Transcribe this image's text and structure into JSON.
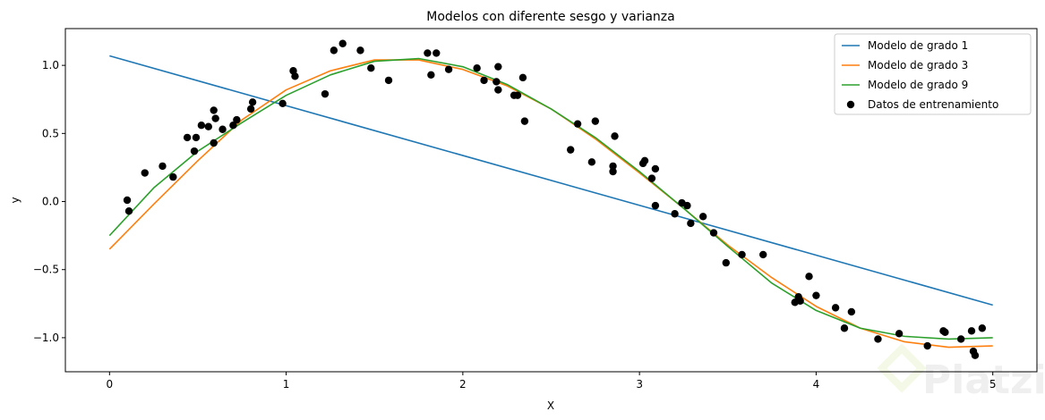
{
  "chart_data": {
    "type": "line",
    "title": "Modelos con diferente sesgo y varianza",
    "xlabel": "X",
    "ylabel": "y",
    "xlim": [
      -0.25,
      5.25
    ],
    "ylim": [
      -1.25,
      1.27
    ],
    "xticks": [
      0,
      1,
      2,
      3,
      4,
      5
    ],
    "xtick_labels": [
      "0",
      "1",
      "2",
      "3",
      "4",
      "5"
    ],
    "yticks": [
      1.0,
      0.5,
      0.0,
      -0.5,
      -1.0
    ],
    "ytick_labels": [
      "1.0",
      "0.5",
      "0.0",
      "−0.5",
      "−1.0"
    ],
    "grid": false,
    "legend_position": "top-right",
    "series": [
      {
        "name": "Modelo de grado 1",
        "type": "line",
        "color": "#1f77b4",
        "x": [
          0,
          5
        ],
        "y": [
          1.07,
          -0.76
        ]
      },
      {
        "name": "Modelo de grado 3",
        "type": "line",
        "color": "#ff7f0e",
        "x": [
          0,
          0.25,
          0.5,
          0.75,
          1,
          1.25,
          1.5,
          1.75,
          2,
          2.25,
          2.5,
          2.75,
          3,
          3.25,
          3.5,
          3.75,
          4,
          4.25,
          4.5,
          4.75,
          5
        ],
        "y": [
          -0.35,
          -0.02,
          0.3,
          0.6,
          0.82,
          0.96,
          1.04,
          1.04,
          0.97,
          0.85,
          0.68,
          0.46,
          0.21,
          -0.05,
          -0.32,
          -0.56,
          -0.77,
          -0.93,
          -1.03,
          -1.07,
          -1.06
        ]
      },
      {
        "name": "Modelo de grado 9",
        "type": "line",
        "color": "#2ca02c",
        "x": [
          0,
          0.25,
          0.5,
          0.75,
          1,
          1.25,
          1.5,
          1.75,
          2,
          2.25,
          2.5,
          2.75,
          3,
          3.25,
          3.5,
          3.75,
          4,
          4.25,
          4.5,
          4.75,
          5
        ],
        "y": [
          -0.25,
          0.1,
          0.37,
          0.58,
          0.78,
          0.93,
          1.03,
          1.05,
          0.99,
          0.86,
          0.68,
          0.47,
          0.22,
          -0.05,
          -0.33,
          -0.6,
          -0.8,
          -0.93,
          -0.99,
          -1.01,
          -1.0
        ]
      },
      {
        "name": "Datos de entrenamiento",
        "type": "scatter",
        "color": "#000000",
        "x": [
          0.1,
          0.11,
          0.2,
          0.3,
          0.36,
          0.44,
          0.48,
          0.49,
          0.52,
          0.56,
          0.59,
          0.59,
          0.6,
          0.64,
          0.7,
          0.72,
          0.8,
          0.81,
          0.98,
          1.04,
          1.05,
          1.22,
          1.27,
          1.32,
          1.42,
          1.48,
          1.58,
          1.8,
          1.82,
          1.85,
          1.92,
          2.08,
          2.12,
          2.19,
          2.2,
          2.2,
          2.29,
          2.31,
          2.34,
          2.35,
          2.61,
          2.65,
          2.73,
          2.75,
          2.85,
          2.85,
          2.86,
          3.02,
          3.03,
          3.07,
          3.09,
          3.09,
          3.2,
          3.24,
          3.27,
          3.29,
          3.36,
          3.42,
          3.49,
          3.58,
          3.7,
          3.88,
          3.9,
          3.91,
          3.96,
          4.0,
          4.11,
          4.16,
          4.2,
          4.35,
          4.47,
          4.63,
          4.72,
          4.73,
          4.82,
          4.88,
          4.89,
          4.9,
          4.94
        ],
        "y": [
          0.01,
          -0.07,
          0.21,
          0.26,
          0.18,
          0.47,
          0.37,
          0.47,
          0.56,
          0.55,
          0.43,
          0.67,
          0.61,
          0.53,
          0.56,
          0.6,
          0.68,
          0.73,
          0.72,
          0.96,
          0.92,
          0.79,
          1.11,
          1.16,
          1.11,
          0.98,
          0.89,
          1.09,
          0.93,
          1.09,
          0.97,
          0.98,
          0.89,
          0.88,
          0.99,
          0.82,
          0.78,
          0.78,
          0.91,
          0.59,
          0.38,
          0.57,
          0.29,
          0.59,
          0.26,
          0.22,
          0.48,
          0.28,
          0.3,
          0.17,
          0.24,
          -0.03,
          -0.09,
          -0.01,
          -0.03,
          -0.16,
          -0.11,
          -0.23,
          -0.45,
          -0.39,
          -0.39,
          -0.74,
          -0.7,
          -0.73,
          -0.55,
          -0.69,
          -0.78,
          -0.93,
          -0.81,
          -1.01,
          -0.97,
          -1.06,
          -0.95,
          -0.96,
          -1.01,
          -0.95,
          -1.1,
          -1.13,
          -0.93
        ]
      }
    ]
  },
  "watermark": "Platzi"
}
